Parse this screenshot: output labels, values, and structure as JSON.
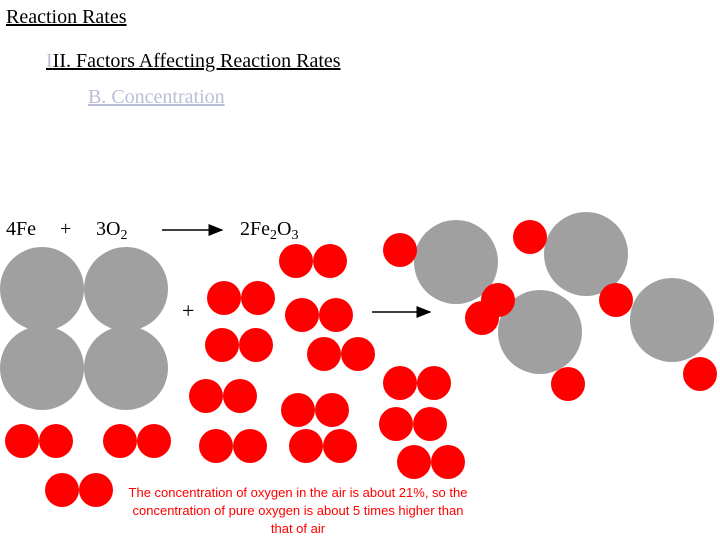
{
  "slide": {
    "title": "Reaction Rates",
    "heading_first_char": "I",
    "heading_rest": "II.  Factors Affecting Reaction Rates",
    "subheading": "B.  Concentration"
  },
  "equation": {
    "reactant1": "4Fe",
    "plus": "+",
    "reactant2_coef": "3O",
    "reactant2_sub": "2",
    "product_prefix": "2Fe",
    "product_sub1": "2",
    "product_mid": "O",
    "product_sub2": "3"
  },
  "mixture_plus": "+",
  "caption": "The concentration of oxygen in the air is about 21%, so the concentration of pure oxygen is about 5 times higher than that of air",
  "colors": {
    "iron": "#a0a0a0",
    "oxygen": "#ff0000",
    "label_faint": "#b9bfd6"
  }
}
